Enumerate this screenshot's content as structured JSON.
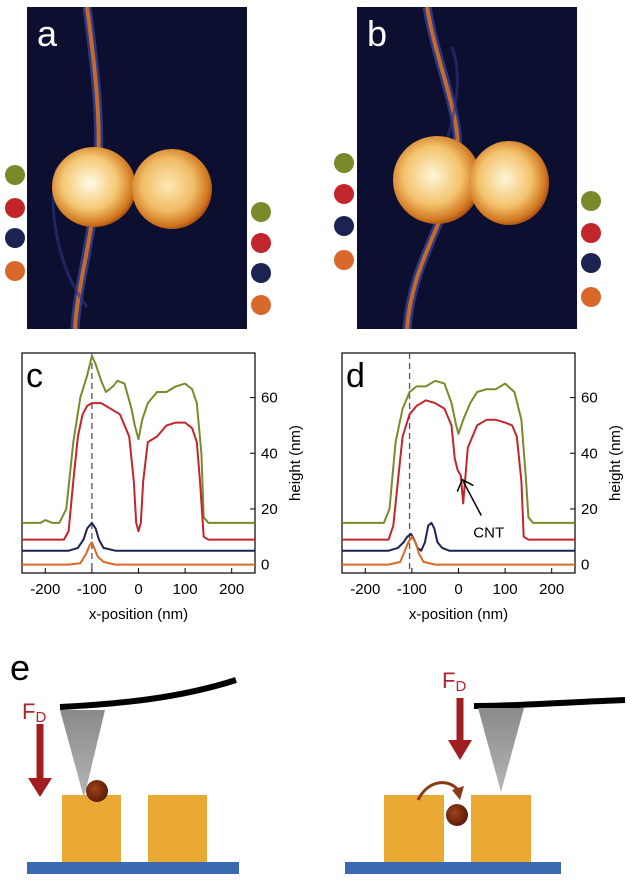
{
  "panels": {
    "a": {
      "label": "a"
    },
    "b": {
      "label": "b"
    },
    "c": {
      "label": "c"
    },
    "d": {
      "label": "d"
    },
    "e": {
      "label": "e"
    }
  },
  "colors": {
    "green": "#7a8a2a",
    "red": "#c0262b",
    "navy": "#1d2350",
    "orange": "#d8692a"
  },
  "chart_data": [
    {
      "type": "line",
      "panel": "c",
      "xlabel": "x-position (nm)",
      "ylabel": "height (nm)",
      "xlim": [
        -250,
        250
      ],
      "ylim": [
        -3,
        76
      ],
      "xticks": [
        "-200",
        "-100",
        "0",
        "100",
        "200"
      ],
      "yticks": [
        "0",
        "20",
        "40",
        "60"
      ],
      "dashed_line_x": -100,
      "series": [
        {
          "color": "green",
          "x": [
            -250,
            -210,
            -200,
            -185,
            -170,
            -155,
            -140,
            -125,
            -110,
            -100,
            -92,
            -80,
            -70,
            -55,
            -45,
            -30,
            -15,
            -8,
            0,
            8,
            20,
            40,
            60,
            80,
            100,
            115,
            125,
            135,
            140,
            150,
            200,
            250
          ],
          "y": [
            15,
            15,
            16,
            15,
            15,
            20,
            44,
            60,
            68,
            75,
            72,
            66,
            62,
            64,
            66,
            65,
            56,
            50,
            45,
            52,
            58,
            62,
            62,
            64,
            65,
            63,
            58,
            40,
            17,
            15,
            15,
            15
          ]
        },
        {
          "color": "red",
          "x": [
            -250,
            -200,
            -160,
            -150,
            -140,
            -130,
            -120,
            -110,
            -100,
            -80,
            -60,
            -40,
            -20,
            -10,
            -5,
            0,
            5,
            10,
            20,
            40,
            60,
            80,
            100,
            115,
            125,
            132,
            140,
            150,
            200,
            250
          ],
          "y": [
            9,
            9,
            9,
            12,
            30,
            46,
            54,
            57,
            58,
            58,
            56,
            54,
            46,
            30,
            15,
            12,
            15,
            30,
            44,
            46,
            50,
            51,
            51,
            49,
            44,
            30,
            10,
            9,
            9,
            9
          ]
        },
        {
          "color": "navy",
          "x": [
            -250,
            -200,
            -150,
            -130,
            -118,
            -110,
            -100,
            -92,
            -85,
            -75,
            -50,
            0,
            50,
            100,
            150,
            200,
            250
          ],
          "y": [
            5,
            5,
            5,
            6,
            9,
            13,
            15,
            13,
            9,
            6,
            5,
            5,
            5,
            5,
            5,
            5,
            5
          ]
        },
        {
          "color": "orange",
          "x": [
            -250,
            -200,
            -150,
            -125,
            -112,
            -105,
            -100,
            -95,
            -88,
            -75,
            -50,
            0,
            50,
            100,
            150,
            200,
            250
          ],
          "y": [
            0,
            0,
            0,
            0.5,
            4,
            7,
            8,
            6,
            3,
            1,
            0,
            0,
            0,
            0,
            0,
            0,
            0
          ]
        }
      ]
    },
    {
      "type": "line",
      "panel": "d",
      "xlabel": "x-position (nm)",
      "ylabel": "height (nm)",
      "xlim": [
        -250,
        250
      ],
      "ylim": [
        -3,
        76
      ],
      "xticks": [
        "-200",
        "-100",
        "0",
        "100",
        "200"
      ],
      "yticks": [
        "0",
        "20",
        "40",
        "60"
      ],
      "dashed_line_x": -105,
      "annotation": "CNT",
      "series": [
        {
          "color": "green",
          "x": [
            -250,
            -200,
            -160,
            -148,
            -135,
            -120,
            -105,
            -90,
            -70,
            -50,
            -30,
            -15,
            -5,
            0,
            10,
            25,
            40,
            60,
            80,
            100,
            120,
            135,
            145,
            150,
            160,
            200,
            250
          ],
          "y": [
            15,
            15,
            15,
            20,
            44,
            56,
            62,
            64,
            64,
            66,
            65,
            58,
            50,
            47,
            52,
            58,
            62,
            63,
            63,
            65,
            62,
            52,
            30,
            17,
            15,
            15,
            15
          ]
        },
        {
          "color": "red",
          "x": [
            -250,
            -200,
            -150,
            -140,
            -130,
            -120,
            -105,
            -90,
            -70,
            -50,
            -30,
            -15,
            -8,
            -2,
            5,
            10,
            20,
            40,
            60,
            80,
            100,
            115,
            125,
            135,
            140,
            150,
            200,
            250
          ],
          "y": [
            9,
            9,
            9,
            14,
            30,
            46,
            54,
            57,
            59,
            58,
            56,
            50,
            38,
            34,
            32,
            22,
            42,
            50,
            52,
            52,
            51,
            50,
            46,
            30,
            10,
            9,
            9,
            9
          ]
        },
        {
          "color": "navy",
          "x": [
            -250,
            -200,
            -150,
            -130,
            -118,
            -110,
            -102,
            -95,
            -88,
            -80,
            -72,
            -65,
            -58,
            -52,
            -45,
            -35,
            -20,
            0,
            50,
            100,
            150,
            200,
            250
          ],
          "y": [
            5,
            5,
            5,
            6,
            8,
            10,
            11,
            9,
            6,
            5,
            8,
            14,
            15,
            13,
            8,
            6,
            5,
            5,
            5,
            5,
            5,
            5,
            5
          ]
        },
        {
          "color": "orange",
          "x": [
            -250,
            -200,
            -150,
            -125,
            -115,
            -108,
            -100,
            -92,
            -85,
            -75,
            -50,
            0,
            50,
            100,
            150,
            200,
            250
          ],
          "y": [
            0,
            0,
            0,
            1,
            5,
            8,
            10,
            8,
            4,
            1,
            0,
            0,
            0,
            0,
            0,
            0,
            0
          ]
        }
      ]
    }
  ],
  "diagram_e": {
    "force_label_main": "F",
    "force_label_sub": "D"
  }
}
